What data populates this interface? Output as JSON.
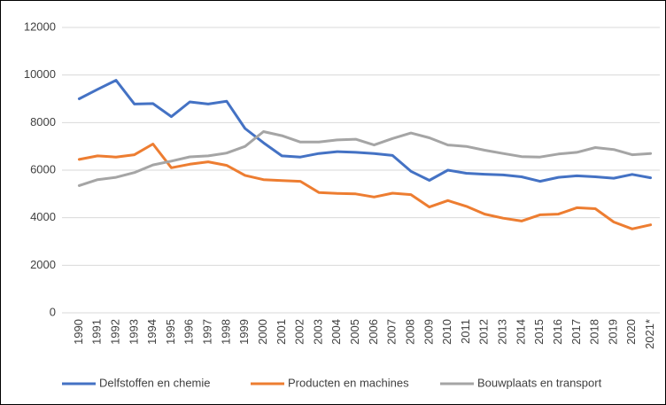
{
  "chart_data": {
    "type": "line",
    "categories": [
      "1990",
      "1991",
      "1992",
      "1993",
      "1994",
      "1995",
      "1996",
      "1997",
      "1998",
      "1999",
      "2000",
      "2001",
      "2002",
      "2003",
      "2004",
      "2005",
      "2006",
      "2007",
      "2008",
      "2009",
      "2010",
      "2011",
      "2012",
      "2013",
      "2014",
      "2015",
      "2016",
      "2017",
      "2018",
      "2019",
      "2020",
      "2021*"
    ],
    "series": [
      {
        "name": "Delfstoffen en chemie",
        "color": "#4472c4",
        "values": [
          9000,
          9400,
          9780,
          8780,
          8800,
          8250,
          8870,
          8780,
          8900,
          7750,
          7150,
          6600,
          6550,
          6700,
          6780,
          6750,
          6700,
          6620,
          5950,
          5570,
          6000,
          5870,
          5830,
          5800,
          5720,
          5530,
          5700,
          5760,
          5720,
          5660,
          5820,
          5680
        ]
      },
      {
        "name": "Producten en machines",
        "color": "#ed7d31",
        "values": [
          6450,
          6600,
          6550,
          6650,
          7100,
          6100,
          6250,
          6350,
          6200,
          5780,
          5600,
          5560,
          5530,
          5060,
          5020,
          5000,
          4870,
          5030,
          4970,
          4450,
          4720,
          4480,
          4150,
          3980,
          3860,
          4120,
          4150,
          4420,
          4380,
          3820,
          3530,
          3700
        ]
      },
      {
        "name": "Bouwplaats en transport",
        "color": "#a5a5a5",
        "values": [
          5350,
          5600,
          5700,
          5900,
          6220,
          6380,
          6560,
          6600,
          6720,
          7000,
          7620,
          7450,
          7180,
          7180,
          7270,
          7300,
          7060,
          7330,
          7560,
          7360,
          7060,
          7000,
          6840,
          6700,
          6570,
          6550,
          6680,
          6750,
          6950,
          6870,
          6650,
          6700
        ]
      }
    ],
    "ylim": [
      0,
      12000
    ],
    "yticks": [
      0,
      2000,
      4000,
      6000,
      8000,
      10000,
      12000
    ],
    "grid": true,
    "legend": "bottom"
  }
}
